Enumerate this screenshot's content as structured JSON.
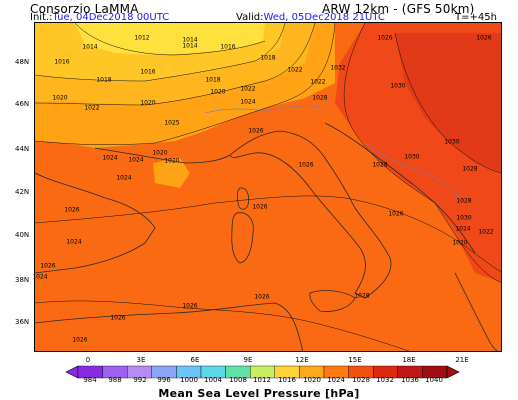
{
  "header": {
    "source": "Consorzio LaMMA",
    "model": "ARW 12km - (GFS 50km)",
    "init_label": "Init.:",
    "init_value": "Tue, 04Dec2018 00UTC",
    "valid_label": "Valid:",
    "valid_value": "Wed, 05Dec2018 21UTC",
    "forecast_step": "T=+45h"
  },
  "axes": {
    "lat_labels": [
      "48N",
      "46N",
      "44N",
      "42N",
      "40N",
      "38N",
      "36N"
    ],
    "lon_labels": [
      "0",
      "3E",
      "6E",
      "9E",
      "12E",
      "15E",
      "18E",
      "21E"
    ]
  },
  "isobar_labels": [
    "1012",
    "1014",
    "1016",
    "1014",
    "1016",
    "1018",
    "1026",
    "1026",
    "1014",
    "1016",
    "1018",
    "1018",
    "1020",
    "1022",
    "1022",
    "1032",
    "1020",
    "1022",
    "1020",
    "1024",
    "1022",
    "1028",
    "1030",
    "1025",
    "1026",
    "1024",
    "1020",
    "1024",
    "1020",
    "1024",
    "1026",
    "1028",
    "1030",
    "1030",
    "1028",
    "1026",
    "1026",
    "1026",
    "1028",
    "1030",
    "1024",
    "1024",
    "1020",
    "1022",
    "1026",
    "1024",
    "1026",
    "1028",
    "1026",
    "1026",
    "1026"
  ],
  "colorbar": {
    "title": "Mean Sea Level Pressure [hPa]",
    "values": [
      "984",
      "988",
      "992",
      "996",
      "1000",
      "1004",
      "1008",
      "1012",
      "1016",
      "1020",
      "1024",
      "1028",
      "1032",
      "1036",
      "1040"
    ],
    "colors": [
      "#8a2be2",
      "#9f5fef",
      "#b58cf6",
      "#8ba6f6",
      "#6ec3f7",
      "#5ad8e8",
      "#63e0a8",
      "#c9ee62",
      "#ffd23a",
      "#ffa91a",
      "#ff7a10",
      "#f05010",
      "#dc2a10",
      "#c01616",
      "#a00d12"
    ]
  },
  "map_fill_colors": {
    "sea_1024": "#fa6a12",
    "band_1022": "#ffa214",
    "band_1020": "#ffb51e",
    "band_1018": "#ffc626",
    "band_1014": "#ffe03c",
    "band_1028": "#f04818",
    "band_1032": "#e23a18"
  }
}
